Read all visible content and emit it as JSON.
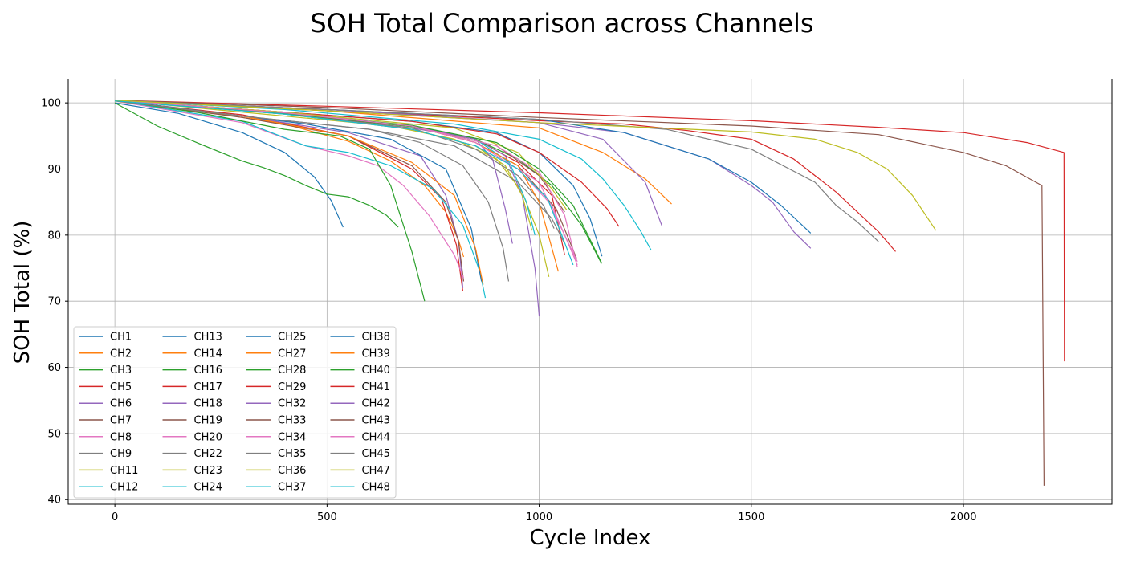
{
  "chart_data": {
    "type": "line",
    "title": "SOH Total Comparison across Channels",
    "xlabel": "Cycle Index",
    "ylabel": "SOH Total (%)",
    "xlim": [
      -110,
      2350
    ],
    "ylim": [
      39.3,
      103.6
    ],
    "xticks": [
      0,
      500,
      1000,
      1500,
      2000
    ],
    "yticks": [
      40,
      50,
      60,
      70,
      80,
      90,
      100
    ],
    "grid": true,
    "legend": {
      "placement": "lower-left",
      "columns": 4
    },
    "series": [
      {
        "name": "CH1",
        "color": "#1f77b4",
        "x": [
          0,
          150,
          300,
          400,
          470,
          510,
          538
        ],
        "y": [
          100,
          98.4,
          95.5,
          92.5,
          88.8,
          85.2,
          81.2
        ]
      },
      {
        "name": "CH2",
        "color": "#ff7f0e",
        "x": [
          0,
          200,
          400,
          550,
          650,
          730,
          780,
          810,
          822
        ],
        "y": [
          100.4,
          98.8,
          96.8,
          94.2,
          91.2,
          87.5,
          83.5,
          79.2,
          76.7
        ]
      },
      {
        "name": "CH3",
        "color": "#2ca02c",
        "x": [
          0,
          100,
          200,
          300,
          350,
          400,
          450,
          500,
          550,
          600,
          640,
          668
        ],
        "y": [
          100,
          96.5,
          93.8,
          91.2,
          90.2,
          89.0,
          87.5,
          86.2,
          85.8,
          84.5,
          83.0,
          81.2
        ]
      },
      {
        "name": "CH5",
        "color": "#d62728",
        "x": [
          0,
          300,
          550,
          700,
          770,
          805,
          820
        ],
        "y": [
          100.3,
          98.2,
          95.0,
          90.0,
          85.5,
          78.5,
          71.5
        ]
      },
      {
        "name": "CH6",
        "color": "#9467bd",
        "x": [
          0,
          300,
          550,
          720,
          780,
          810,
          820
        ],
        "y": [
          100.4,
          98.0,
          95.5,
          92.0,
          86.0,
          79.0,
          72.0
        ]
      },
      {
        "name": "CH7",
        "color": "#8c564b",
        "x": [
          0,
          300,
          550,
          700,
          780,
          810,
          822
        ],
        "y": [
          100.3,
          97.8,
          95.0,
          90.5,
          85.0,
          79.0,
          73.0
        ]
      },
      {
        "name": "CH8",
        "color": "#e377c2",
        "x": [
          0,
          300,
          450,
          550,
          620,
          680,
          740,
          800,
          822
        ],
        "y": [
          100.3,
          97.0,
          93.5,
          92.0,
          90.5,
          87.5,
          83.0,
          77.0,
          73.5
        ]
      },
      {
        "name": "CH9",
        "color": "#7f7f7f",
        "x": [
          0,
          300,
          600,
          720,
          820,
          880,
          915,
          928
        ],
        "y": [
          100.3,
          98.0,
          96.0,
          94.0,
          90.5,
          85.0,
          78.0,
          73.0
        ]
      },
      {
        "name": "CH11",
        "color": "#bcbd22",
        "x": [
          0,
          350,
          650,
          800,
          900,
          960,
          1000,
          1023
        ],
        "y": [
          100.4,
          98.3,
          96.5,
          94.5,
          91.5,
          86.5,
          80.0,
          73.7
        ]
      },
      {
        "name": "CH12",
        "color": "#17becf",
        "x": [
          0,
          300,
          450,
          550,
          650,
          750,
          820,
          860,
          873
        ],
        "y": [
          100.4,
          97.2,
          93.5,
          92.5,
          90.5,
          87.0,
          81.5,
          74.5,
          70.5
        ]
      },
      {
        "name": "CH13",
        "color": "#1f77b4",
        "x": [
          0,
          200,
          450,
          650,
          780,
          840,
          864
        ],
        "y": [
          100.4,
          98.8,
          96.8,
          94.5,
          90.0,
          81.0,
          73.0
        ]
      },
      {
        "name": "CH14",
        "color": "#ff7f0e",
        "x": [
          0,
          300,
          550,
          700,
          800,
          850,
          868
        ],
        "y": [
          100.3,
          98.0,
          95.0,
          91.0,
          86.0,
          78.0,
          72.5
        ]
      },
      {
        "name": "CH16",
        "color": "#2ca02c",
        "x": [
          0,
          200,
          400,
          530,
          600,
          650,
          700,
          730
        ],
        "y": [
          100.4,
          98.5,
          96.0,
          95.0,
          93.0,
          87.5,
          77.5,
          70.0
        ]
      },
      {
        "name": "CH17",
        "color": "#d62728",
        "x": [
          0,
          400,
          700,
          850,
          950,
          1030,
          1060
        ],
        "y": [
          100.3,
          98.5,
          96.5,
          94.5,
          91.0,
          86.0,
          77.0
        ]
      },
      {
        "name": "CH18",
        "color": "#9467bd",
        "x": [
          0,
          400,
          700,
          850,
          920,
          960,
          990,
          1000
        ],
        "y": [
          100.4,
          98.3,
          96.2,
          94.5,
          92.0,
          86.0,
          75.0,
          67.7
        ]
      },
      {
        "name": "CH19",
        "color": "#8c564b",
        "x": [
          0,
          400,
          700,
          850,
          950,
          1040,
          1088
        ],
        "y": [
          100.3,
          98.5,
          96.5,
          94.0,
          90.5,
          84.0,
          76.5
        ]
      },
      {
        "name": "CH20",
        "color": "#e377c2",
        "x": [
          0,
          400,
          700,
          850,
          950,
          1030,
          1090
        ],
        "y": [
          100.4,
          98.3,
          96.0,
          93.5,
          90.0,
          84.5,
          75.5
        ]
      },
      {
        "name": "CH22",
        "color": "#7f7f7f",
        "x": [
          0,
          400,
          700,
          850,
          950,
          1010,
          1035
        ],
        "y": [
          100.3,
          98.4,
          96.2,
          93.0,
          89.0,
          84.5,
          81.0
        ]
      },
      {
        "name": "CH23",
        "color": "#bcbd22",
        "x": [
          0,
          400,
          700,
          850,
          920,
          960,
          983
        ],
        "y": [
          100.4,
          98.3,
          96.0,
          93.5,
          90.5,
          86.0,
          80.7
        ]
      },
      {
        "name": "CH24",
        "color": "#17becf",
        "x": [
          0,
          400,
          700,
          850,
          930,
          970,
          990
        ],
        "y": [
          100.4,
          98.5,
          96.5,
          94.5,
          91.0,
          85.0,
          80.0
        ]
      },
      {
        "name": "CH25",
        "color": "#1f77b4",
        "x": [
          0,
          400,
          700,
          900,
          1000,
          1080,
          1120,
          1148
        ],
        "y": [
          100.4,
          98.6,
          97.2,
          95.5,
          92.5,
          87.5,
          82.5,
          76.8
        ]
      },
      {
        "name": "CH27",
        "color": "#ff7f0e",
        "x": [
          0,
          400,
          700,
          850,
          950,
          1000,
          1045
        ],
        "y": [
          100.3,
          98.4,
          96.5,
          94.0,
          90.5,
          85.0,
          74.5
        ]
      },
      {
        "name": "CH28",
        "color": "#2ca02c",
        "x": [
          0,
          400,
          700,
          850,
          950,
          1030,
          1100,
          1147
        ],
        "y": [
          100.4,
          98.4,
          96.4,
          94.5,
          91.5,
          87.5,
          81.5,
          75.7
        ]
      },
      {
        "name": "CH29",
        "color": "#d62728",
        "x": [
          0,
          400,
          700,
          900,
          1000,
          1100,
          1160,
          1188
        ],
        "y": [
          100.4,
          98.6,
          97.2,
          95.3,
          92.5,
          88.0,
          84.0,
          81.3
        ]
      },
      {
        "name": "CH32",
        "color": "#9467bd",
        "x": [
          0,
          400,
          700,
          850,
          890,
          920,
          937
        ],
        "y": [
          100.4,
          98.6,
          96.5,
          94.5,
          91.5,
          84.0,
          78.7
        ]
      },
      {
        "name": "CH33",
        "color": "#8c564b",
        "x": [
          0,
          400,
          700,
          900,
          1000,
          1060
        ],
        "y": [
          100.3,
          98.4,
          96.5,
          93.5,
          89.0,
          83.5
        ]
      },
      {
        "name": "CH34",
        "color": "#e377c2",
        "x": [
          0,
          400,
          700,
          900,
          1000,
          1060,
          1090
        ],
        "y": [
          100.4,
          98.6,
          96.5,
          93.5,
          89.5,
          83.0,
          75.2
        ]
      },
      {
        "name": "CH35",
        "color": "#7f7f7f",
        "x": [
          0,
          300,
          600,
          800,
          950,
          1030,
          1060
        ],
        "y": [
          100.3,
          98.0,
          96.0,
          93.5,
          88.0,
          82.5,
          78.7
        ]
      },
      {
        "name": "CH36",
        "color": "#bcbd22",
        "x": [
          0,
          400,
          800,
          950,
          1030,
          1065
        ],
        "y": [
          100.4,
          98.6,
          96.2,
          92.5,
          87.0,
          83.8
        ]
      },
      {
        "name": "CH37",
        "color": "#17becf",
        "x": [
          0,
          400,
          800,
          1000,
          1100,
          1150,
          1200,
          1240,
          1264
        ],
        "y": [
          100.4,
          99.0,
          96.8,
          94.5,
          91.5,
          88.5,
          84.5,
          80.5,
          77.7
        ]
      },
      {
        "name": "CH38",
        "color": "#1f77b4",
        "x": [
          0,
          500,
          1000,
          1200,
          1400,
          1500,
          1570,
          1640
        ],
        "y": [
          100.4,
          99.0,
          97.5,
          95.5,
          91.5,
          88.0,
          84.5,
          80.3
        ]
      },
      {
        "name": "CH39",
        "color": "#ff7f0e",
        "x": [
          0,
          500,
          1000,
          1150,
          1250,
          1312
        ],
        "y": [
          100.4,
          98.8,
          96.2,
          92.5,
          88.5,
          84.7
        ]
      },
      {
        "name": "CH40",
        "color": "#2ca02c",
        "x": [
          0,
          400,
          700,
          900,
          1000,
          1080,
          1147
        ],
        "y": [
          100.3,
          98.4,
          96.6,
          94.0,
          90.0,
          84.5,
          75.8
        ]
      },
      {
        "name": "CH41",
        "color": "#d62728",
        "x": [
          0,
          500,
          1000,
          1500,
          1800,
          2000,
          2150,
          2237,
          2238
        ],
        "y": [
          100.4,
          99.5,
          98.5,
          97.3,
          96.3,
          95.5,
          94.0,
          92.5,
          60.9
        ]
      },
      {
        "name": "CH42",
        "color": "#9467bd",
        "x": [
          0,
          500,
          1000,
          1150,
          1250,
          1290
        ],
        "y": [
          100.4,
          99.0,
          97.0,
          94.5,
          88.0,
          81.3
        ]
      },
      {
        "name": "CH43",
        "color": "#8c564b",
        "x": [
          0,
          500,
          1000,
          1500,
          1800,
          2000,
          2100,
          2185,
          2190
        ],
        "y": [
          100.4,
          99.3,
          97.8,
          96.5,
          95.2,
          92.5,
          90.5,
          87.5,
          42.1
        ]
      },
      {
        "name": "CH44",
        "color": "#e377c2",
        "x": [
          0,
          400,
          700,
          850,
          1000,
          1090
        ],
        "y": [
          100.4,
          98.5,
          96.5,
          94.0,
          88.0,
          76.0
        ]
      },
      {
        "name": "CH45",
        "color": "#7f7f7f",
        "x": [
          0,
          500,
          1000,
          1300,
          1500,
          1650,
          1700,
          1750,
          1800
        ],
        "y": [
          100.4,
          99.0,
          97.5,
          96.0,
          93.0,
          88.0,
          84.5,
          82.0,
          79.0
        ]
      },
      {
        "name": "CH47",
        "color": "#bcbd22",
        "x": [
          0,
          500,
          1000,
          1500,
          1650,
          1750,
          1820,
          1880,
          1935
        ],
        "y": [
          100.4,
          98.8,
          97.0,
          95.6,
          94.5,
          92.5,
          90.0,
          86.0,
          80.7
        ]
      },
      {
        "name": "CH48",
        "color": "#17becf",
        "x": [
          0,
          400,
          700,
          850,
          950,
          1020,
          1080
        ],
        "y": [
          100.3,
          98.3,
          96.0,
          93.5,
          90.0,
          85.5,
          75.5
        ]
      }
    ],
    "extra_series": [
      {
        "color": "#d62728",
        "x": [
          0,
          500,
          1000,
          1200,
          1350,
          1500,
          1600,
          1700,
          1800,
          1840
        ],
        "y": [
          100.4,
          99.0,
          97.3,
          96.8,
          95.8,
          94.5,
          91.5,
          86.5,
          80.5,
          77.5
        ]
      },
      {
        "color": "#9467bd",
        "x": [
          0,
          500,
          1000,
          1200,
          1400,
          1500,
          1550,
          1600,
          1640
        ],
        "y": [
          100.4,
          98.8,
          97.0,
          95.5,
          91.5,
          87.5,
          85.0,
          80.5,
          78.0
        ]
      }
    ]
  }
}
